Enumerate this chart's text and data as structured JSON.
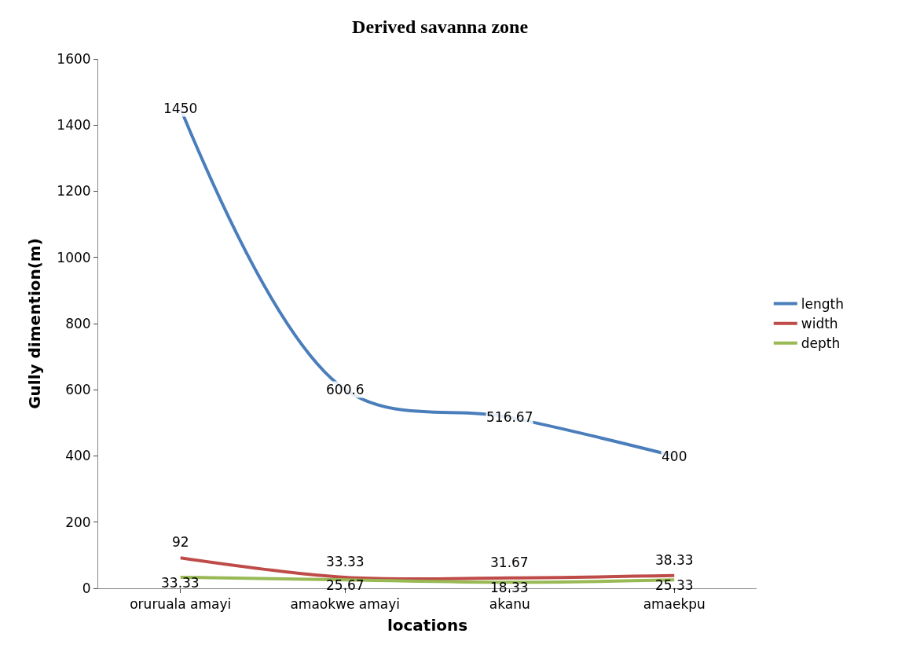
{
  "chart_data": {
    "type": "line",
    "title": "Derived savanna zone",
    "xlabel": "locations",
    "ylabel": "Gully dimention(m)",
    "categories": [
      "oruruala amayi",
      "amaokwe amayi",
      "akanu",
      "amaekpu"
    ],
    "series": [
      {
        "name": "length",
        "color": "#4a7ebb",
        "values": [
          1450,
          600.6,
          516.67,
          400
        ]
      },
      {
        "name": "width",
        "color": "#be4b48",
        "values": [
          92,
          33.33,
          31.67,
          38.33
        ]
      },
      {
        "name": "depth",
        "color": "#98b954",
        "values": [
          33.33,
          25.67,
          18.33,
          25.33
        ]
      }
    ],
    "ylim": [
      0,
      1600
    ],
    "yticks": [
      0,
      200,
      400,
      600,
      800,
      1000,
      1200,
      1400,
      1600
    ],
    "legend": "right",
    "data_labels": true,
    "line_style": "solid"
  }
}
